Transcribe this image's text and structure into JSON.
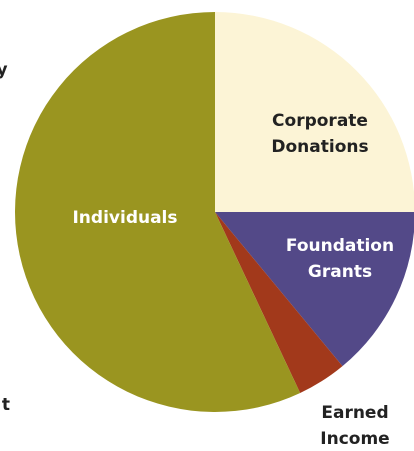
{
  "chart_data": {
    "type": "pie",
    "categories": [
      "Corporate Donations",
      "Foundation Grants",
      "Earned Income",
      "Individuals"
    ],
    "values": [
      25,
      14,
      4,
      57
    ],
    "colors": [
      "#fcf4d6",
      "#534988",
      "#a2391b",
      "#9a9520"
    ],
    "label_colors": [
      "#222222",
      "#ffffff",
      "#222222",
      "#ffffff"
    ],
    "annotations": [
      "y",
      "t"
    ]
  }
}
